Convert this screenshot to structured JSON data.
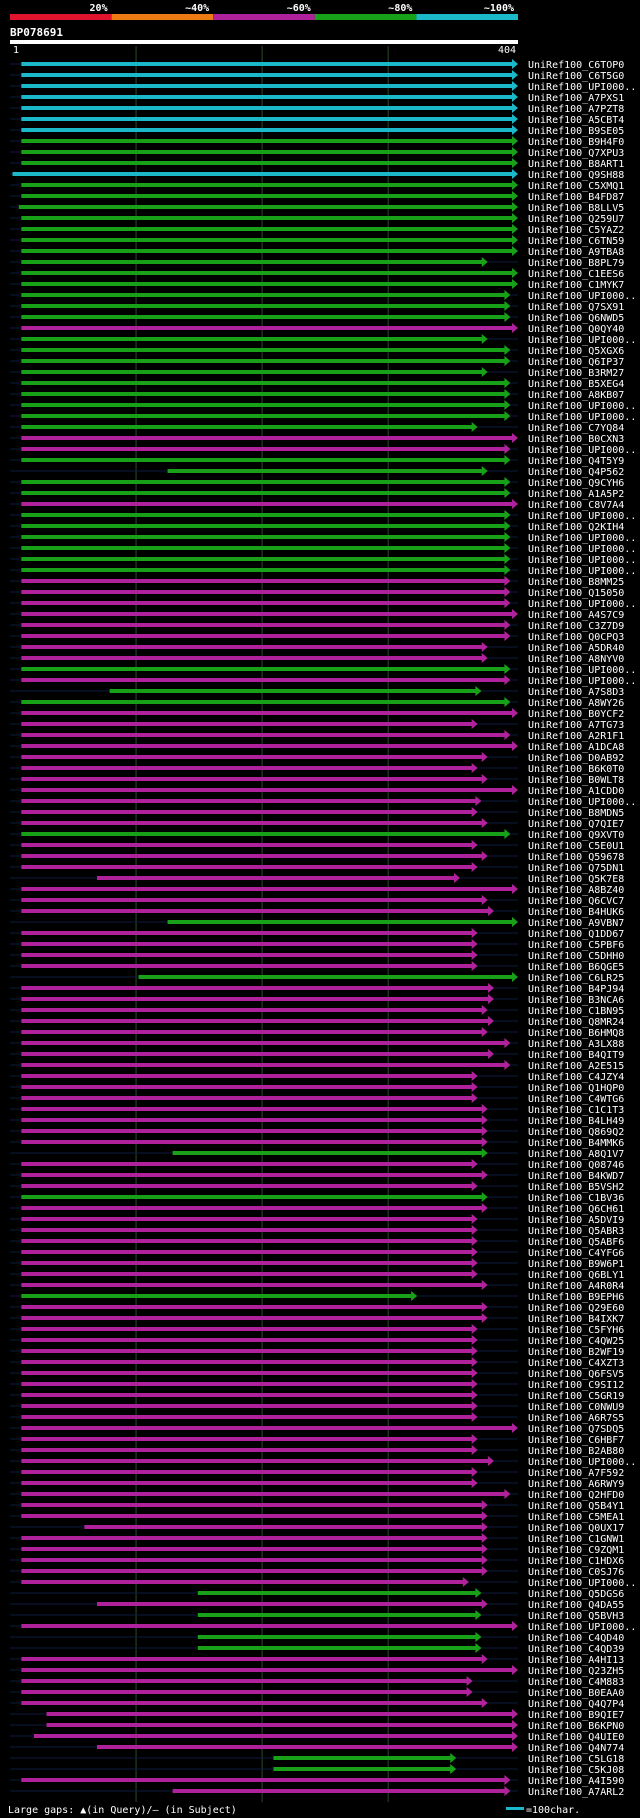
{
  "chart_data": {
    "type": "bar",
    "query_id": "BP078691",
    "query_length": 404,
    "axis": {
      "start_label": "1",
      "end_label": "404"
    },
    "identity_scale": [
      {
        "label": "20%",
        "color": "#e0142c"
      },
      {
        "label": "~40%",
        "color": "#ee7a14"
      },
      {
        "label": "~60%",
        "color": "#b0229b"
      },
      {
        "label": "~80%",
        "color": "#18a018"
      },
      {
        "label": "~100%",
        "color": "#1ab8c8"
      }
    ],
    "footer": {
      "gaps_text": "Large gaps: ▲(in Query)/– (in Subject)",
      "scale_text": "=100char."
    },
    "hits": [
      {
        "name": "UniRef100_C6TOP0",
        "start": 10,
        "end": 404,
        "id": "~100%"
      },
      {
        "name": "UniRef100_C6T5G0",
        "start": 10,
        "end": 404,
        "id": "~100%"
      },
      {
        "name": "UniRef100_UPI000..",
        "start": 10,
        "end": 404,
        "id": "~100%"
      },
      {
        "name": "UniRef100_A7PXS1",
        "start": 10,
        "end": 404,
        "id": "~100%"
      },
      {
        "name": "UniRef100_A7PZT8",
        "start": 10,
        "end": 404,
        "id": "~100%"
      },
      {
        "name": "UniRef100_A5CBT4",
        "start": 10,
        "end": 404,
        "id": "~100%"
      },
      {
        "name": "UniRef100_B9SE05",
        "start": 10,
        "end": 404,
        "id": "~100%"
      },
      {
        "name": "UniRef100_B9H4F0",
        "start": 10,
        "end": 404,
        "id": "~80%"
      },
      {
        "name": "UniRef100_Q7XPU3",
        "start": 10,
        "end": 404,
        "id": "~80%"
      },
      {
        "name": "UniRef100_B8ART1",
        "start": 10,
        "end": 404,
        "id": "~80%"
      },
      {
        "name": "UniRef100_Q9SH88",
        "start": 3,
        "end": 404,
        "id": "~100%"
      },
      {
        "name": "UniRef100_C5XMQ1",
        "start": 10,
        "end": 404,
        "id": "~80%"
      },
      {
        "name": "UniRef100_B4FD87",
        "start": 10,
        "end": 404,
        "id": "~80%"
      },
      {
        "name": "UniRef100_B8LLV5",
        "start": 8,
        "end": 404,
        "id": "~80%"
      },
      {
        "name": "UniRef100_Q259U7",
        "start": 10,
        "end": 404,
        "id": "~80%"
      },
      {
        "name": "UniRef100_C5YAZ2",
        "start": 10,
        "end": 404,
        "id": "~80%"
      },
      {
        "name": "UniRef100_C6TN59",
        "start": 10,
        "end": 404,
        "id": "~80%"
      },
      {
        "name": "UniRef100_A9TBA8",
        "start": 10,
        "end": 404,
        "id": "~80%"
      },
      {
        "name": "UniRef100_B8PL79",
        "start": 10,
        "end": 380,
        "id": "~80%"
      },
      {
        "name": "UniRef100_C1EES6",
        "start": 10,
        "end": 404,
        "id": "~80%"
      },
      {
        "name": "UniRef100_C1MYK7",
        "start": 10,
        "end": 404,
        "id": "~80%"
      },
      {
        "name": "UniRef100_UPI000..",
        "start": 10,
        "end": 398,
        "id": "~80%"
      },
      {
        "name": "UniRef100_Q7SX91",
        "start": 10,
        "end": 398,
        "id": "~80%"
      },
      {
        "name": "UniRef100_Q6NWD5",
        "start": 10,
        "end": 398,
        "id": "~80%"
      },
      {
        "name": "UniRef100_Q0QY40",
        "start": 10,
        "end": 404,
        "id": "~60%"
      },
      {
        "name": "UniRef100_UPI000..",
        "start": 10,
        "end": 380,
        "id": "~80%"
      },
      {
        "name": "UniRef100_Q5XGX6",
        "start": 10,
        "end": 398,
        "id": "~80%"
      },
      {
        "name": "UniRef100_Q6IP37",
        "start": 10,
        "end": 398,
        "id": "~80%"
      },
      {
        "name": "UniRef100_B3RM27",
        "start": 10,
        "end": 380,
        "id": "~80%"
      },
      {
        "name": "UniRef100_B5XEG4",
        "start": 10,
        "end": 398,
        "id": "~80%"
      },
      {
        "name": "UniRef100_A8KB07",
        "start": 10,
        "end": 398,
        "id": "~80%"
      },
      {
        "name": "UniRef100_UPI000..",
        "start": 10,
        "end": 398,
        "id": "~80%"
      },
      {
        "name": "UniRef100_UPI000..",
        "start": 10,
        "end": 398,
        "id": "~80%"
      },
      {
        "name": "UniRef100_C7YQ84",
        "start": 10,
        "end": 372,
        "id": "~80%"
      },
      {
        "name": "UniRef100_B0CXN3",
        "start": 10,
        "end": 404,
        "id": "~60%"
      },
      {
        "name": "UniRef100_UPI000..",
        "start": 10,
        "end": 398,
        "id": "~60%"
      },
      {
        "name": "UniRef100_Q4T5Y9",
        "start": 10,
        "end": 398,
        "id": "~80%"
      },
      {
        "name": "UniRef100_Q4P562",
        "start": 126,
        "end": 380,
        "id": "~80%"
      },
      {
        "name": "UniRef100_Q9CYH6",
        "start": 10,
        "end": 398,
        "id": "~80%"
      },
      {
        "name": "UniRef100_A1A5P2",
        "start": 10,
        "end": 398,
        "id": "~80%"
      },
      {
        "name": "UniRef100_C8V7A4",
        "start": 10,
        "end": 404,
        "id": "~60%"
      },
      {
        "name": "UniRef100_UPI000..",
        "start": 10,
        "end": 398,
        "id": "~80%"
      },
      {
        "name": "UniRef100_Q2KIH4",
        "start": 10,
        "end": 398,
        "id": "~80%"
      },
      {
        "name": "UniRef100_UPI000..",
        "start": 10,
        "end": 398,
        "id": "~80%"
      },
      {
        "name": "UniRef100_UPI000..",
        "start": 10,
        "end": 398,
        "id": "~80%"
      },
      {
        "name": "UniRef100_UPI000..",
        "start": 10,
        "end": 398,
        "id": "~80%"
      },
      {
        "name": "UniRef100_UPI000..",
        "start": 10,
        "end": 398,
        "id": "~80%"
      },
      {
        "name": "UniRef100_B8MM25",
        "start": 10,
        "end": 398,
        "id": "~60%"
      },
      {
        "name": "UniRef100_Q15050",
        "start": 10,
        "end": 398,
        "id": "~60%"
      },
      {
        "name": "UniRef100_UPI000..",
        "start": 10,
        "end": 398,
        "id": "~60%"
      },
      {
        "name": "UniRef100_A4S7C9",
        "start": 10,
        "end": 404,
        "id": "~60%"
      },
      {
        "name": "UniRef100_C3Z7D9",
        "start": 10,
        "end": 398,
        "id": "~60%"
      },
      {
        "name": "UniRef100_Q0CPQ3",
        "start": 10,
        "end": 398,
        "id": "~60%"
      },
      {
        "name": "UniRef100_A5DR40",
        "start": 10,
        "end": 380,
        "id": "~60%"
      },
      {
        "name": "UniRef100_A8NYV0",
        "start": 10,
        "end": 380,
        "id": "~60%"
      },
      {
        "name": "UniRef100_UPI000..",
        "start": 10,
        "end": 398,
        "id": "~80%"
      },
      {
        "name": "UniRef100_UPI000..",
        "start": 10,
        "end": 398,
        "id": "~60%"
      },
      {
        "name": "UniRef100_A7S8D3",
        "start": 80,
        "end": 375,
        "id": "~80%"
      },
      {
        "name": "UniRef100_A8WY26",
        "start": 10,
        "end": 398,
        "id": "~80%"
      },
      {
        "name": "UniRef100_B0YCF2",
        "start": 10,
        "end": 404,
        "id": "~60%"
      },
      {
        "name": "UniRef100_A7TG73",
        "start": 10,
        "end": 372,
        "id": "~60%"
      },
      {
        "name": "UniRef100_A2R1F1",
        "start": 10,
        "end": 398,
        "id": "~60%"
      },
      {
        "name": "UniRef100_A1DCA8",
        "start": 10,
        "end": 404,
        "id": "~60%"
      },
      {
        "name": "UniRef100_D0AB92",
        "start": 10,
        "end": 380,
        "id": "~60%"
      },
      {
        "name": "UniRef100_B6K0T0",
        "start": 10,
        "end": 372,
        "id": "~60%"
      },
      {
        "name": "UniRef100_B0WLT8",
        "start": 10,
        "end": 380,
        "id": "~60%"
      },
      {
        "name": "UniRef100_A1CDD0",
        "start": 10,
        "end": 404,
        "id": "~60%"
      },
      {
        "name": "UniRef100_UPI000..",
        "start": 10,
        "end": 375,
        "id": "~60%"
      },
      {
        "name": "UniRef100_B8MDN5",
        "start": 10,
        "end": 372,
        "id": "~60%"
      },
      {
        "name": "UniRef100_Q7QIE7",
        "start": 10,
        "end": 380,
        "id": "~60%"
      },
      {
        "name": "UniRef100_Q9XVT0",
        "start": 10,
        "end": 398,
        "id": "~80%"
      },
      {
        "name": "UniRef100_C5E0U1",
        "start": 10,
        "end": 372,
        "id": "~60%"
      },
      {
        "name": "UniRef100_Q59678",
        "start": 10,
        "end": 380,
        "id": "~60%"
      },
      {
        "name": "UniRef100_Q75DN1",
        "start": 10,
        "end": 372,
        "id": "~60%"
      },
      {
        "name": "UniRef100_Q5K7E8",
        "start": 70,
        "end": 358,
        "id": "~60%"
      },
      {
        "name": "UniRef100_A8BZ40",
        "start": 10,
        "end": 404,
        "id": "~60%"
      },
      {
        "name": "UniRef100_Q6CVC7",
        "start": 10,
        "end": 380,
        "id": "~60%"
      },
      {
        "name": "UniRef100_B4HUK6",
        "start": 10,
        "end": 385,
        "id": "~60%"
      },
      {
        "name": "UniRef100_A9VBN7",
        "start": 126,
        "end": 404,
        "id": "~80%"
      },
      {
        "name": "UniRef100_Q1DD67",
        "start": 10,
        "end": 372,
        "id": "~60%"
      },
      {
        "name": "UniRef100_C5PBF6",
        "start": 10,
        "end": 372,
        "id": "~60%"
      },
      {
        "name": "UniRef100_C5DHH0",
        "start": 10,
        "end": 372,
        "id": "~60%"
      },
      {
        "name": "UniRef100_B6QGE5",
        "start": 10,
        "end": 372,
        "id": "~60%"
      },
      {
        "name": "UniRef100_C6LR25",
        "start": 103,
        "end": 404,
        "id": "~80%"
      },
      {
        "name": "UniRef100_B4PJ94",
        "start": 10,
        "end": 385,
        "id": "~60%"
      },
      {
        "name": "UniRef100_B3NCA6",
        "start": 10,
        "end": 385,
        "id": "~60%"
      },
      {
        "name": "UniRef100_C1BN95",
        "start": 10,
        "end": 380,
        "id": "~60%"
      },
      {
        "name": "UniRef100_Q8MR24",
        "start": 10,
        "end": 385,
        "id": "~60%"
      },
      {
        "name": "UniRef100_B6HMQ8",
        "start": 10,
        "end": 380,
        "id": "~60%"
      },
      {
        "name": "UniRef100_A3LX88",
        "start": 10,
        "end": 398,
        "id": "~60%"
      },
      {
        "name": "UniRef100_B4QIT9",
        "start": 10,
        "end": 385,
        "id": "~60%"
      },
      {
        "name": "UniRef100_A2E515",
        "start": 10,
        "end": 398,
        "id": "~60%"
      },
      {
        "name": "UniRef100_C4JZY4",
        "start": 10,
        "end": 372,
        "id": "~60%"
      },
      {
        "name": "UniRef100_Q1HQP0",
        "start": 10,
        "end": 372,
        "id": "~60%"
      },
      {
        "name": "UniRef100_C4WTG6",
        "start": 10,
        "end": 372,
        "id": "~60%"
      },
      {
        "name": "UniRef100_C1C1T3",
        "start": 10,
        "end": 380,
        "id": "~60%"
      },
      {
        "name": "UniRef100_B4LH49",
        "start": 10,
        "end": 380,
        "id": "~60%"
      },
      {
        "name": "UniRef100_Q869Q2",
        "start": 10,
        "end": 380,
        "id": "~60%"
      },
      {
        "name": "UniRef100_B4MMK6",
        "start": 10,
        "end": 380,
        "id": "~60%"
      },
      {
        "name": "UniRef100_A8Q1V7",
        "start": 130,
        "end": 380,
        "id": "~80%"
      },
      {
        "name": "UniRef100_Q08746",
        "start": 10,
        "end": 372,
        "id": "~60%"
      },
      {
        "name": "UniRef100_B4KWD7",
        "start": 10,
        "end": 380,
        "id": "~60%"
      },
      {
        "name": "UniRef100_B5VSH2",
        "start": 10,
        "end": 372,
        "id": "~60%"
      },
      {
        "name": "UniRef100_C1BV36",
        "start": 10,
        "end": 380,
        "id": "~80%"
      },
      {
        "name": "UniRef100_Q6CH61",
        "start": 10,
        "end": 380,
        "id": "~60%"
      },
      {
        "name": "UniRef100_A5DVI9",
        "start": 10,
        "end": 372,
        "id": "~60%"
      },
      {
        "name": "UniRef100_Q5ABR3",
        "start": 10,
        "end": 372,
        "id": "~60%"
      },
      {
        "name": "UniRef100_Q5ABF6",
        "start": 10,
        "end": 372,
        "id": "~60%"
      },
      {
        "name": "UniRef100_C4YFG6",
        "start": 10,
        "end": 372,
        "id": "~60%"
      },
      {
        "name": "UniRef100_B9W6P1",
        "start": 10,
        "end": 372,
        "id": "~60%"
      },
      {
        "name": "UniRef100_Q6BLY1",
        "start": 10,
        "end": 372,
        "id": "~60%"
      },
      {
        "name": "UniRef100_A4R0R4",
        "start": 10,
        "end": 380,
        "id": "~60%"
      },
      {
        "name": "UniRef100_B9EPH6",
        "start": 10,
        "end": 324,
        "id": "~80%"
      },
      {
        "name": "UniRef100_Q29E60",
        "start": 10,
        "end": 380,
        "id": "~60%"
      },
      {
        "name": "UniRef100_B4IXK7",
        "start": 10,
        "end": 380,
        "id": "~60%"
      },
      {
        "name": "UniRef100_C5FYH6",
        "start": 10,
        "end": 372,
        "id": "~60%"
      },
      {
        "name": "UniRef100_C4QW25",
        "start": 10,
        "end": 372,
        "id": "~60%"
      },
      {
        "name": "UniRef100_B2WF19",
        "start": 10,
        "end": 372,
        "id": "~60%"
      },
      {
        "name": "UniRef100_C4XZT3",
        "start": 10,
        "end": 372,
        "id": "~60%"
      },
      {
        "name": "UniRef100_Q6FSV5",
        "start": 10,
        "end": 372,
        "id": "~60%"
      },
      {
        "name": "UniRef100_C9SI12",
        "start": 10,
        "end": 372,
        "id": "~60%"
      },
      {
        "name": "UniRef100_C5GR19",
        "start": 10,
        "end": 372,
        "id": "~60%"
      },
      {
        "name": "UniRef100_C0NWU9",
        "start": 10,
        "end": 372,
        "id": "~60%"
      },
      {
        "name": "UniRef100_A6R7S5",
        "start": 10,
        "end": 372,
        "id": "~60%"
      },
      {
        "name": "UniRef100_Q7SDQ5",
        "start": 10,
        "end": 404,
        "id": "~60%"
      },
      {
        "name": "UniRef100_C6HBF7",
        "start": 10,
        "end": 372,
        "id": "~60%"
      },
      {
        "name": "UniRef100_B2AB80",
        "start": 10,
        "end": 372,
        "id": "~60%"
      },
      {
        "name": "UniRef100_UPI000..",
        "start": 10,
        "end": 385,
        "id": "~60%"
      },
      {
        "name": "UniRef100_A7F592",
        "start": 10,
        "end": 372,
        "id": "~60%"
      },
      {
        "name": "UniRef100_A6RWY9",
        "start": 10,
        "end": 372,
        "id": "~60%"
      },
      {
        "name": "UniRef100_Q2HFD0",
        "start": 10,
        "end": 398,
        "id": "~60%"
      },
      {
        "name": "UniRef100_Q5B4Y1",
        "start": 10,
        "end": 380,
        "id": "~60%"
      },
      {
        "name": "UniRef100_C5MEA1",
        "start": 10,
        "end": 380,
        "id": "~60%"
      },
      {
        "name": "UniRef100_Q0UX17",
        "start": 60,
        "end": 380,
        "id": "~60%"
      },
      {
        "name": "UniRef100_C1GNW1",
        "start": 10,
        "end": 380,
        "id": "~60%"
      },
      {
        "name": "UniRef100_C9ZQM1",
        "start": 10,
        "end": 380,
        "id": "~60%"
      },
      {
        "name": "UniRef100_C1HDX6",
        "start": 10,
        "end": 380,
        "id": "~60%"
      },
      {
        "name": "UniRef100_C0SJ76",
        "start": 10,
        "end": 380,
        "id": "~60%"
      },
      {
        "name": "UniRef100_UPI000..",
        "start": 10,
        "end": 365,
        "id": "~60%"
      },
      {
        "name": "UniRef100_Q5DGS6",
        "start": 150,
        "end": 375,
        "id": "~80%"
      },
      {
        "name": "UniRef100_Q4DA55",
        "start": 70,
        "end": 380,
        "id": "~60%"
      },
      {
        "name": "UniRef100_Q5BVH3",
        "start": 150,
        "end": 375,
        "id": "~80%"
      },
      {
        "name": "UniRef100_UPI000..",
        "start": 10,
        "end": 404,
        "id": "~60%"
      },
      {
        "name": "UniRef100_C4QD40",
        "start": 150,
        "end": 375,
        "id": "~80%"
      },
      {
        "name": "UniRef100_C4QD39",
        "start": 150,
        "end": 375,
        "id": "~80%"
      },
      {
        "name": "UniRef100_A4HI13",
        "start": 10,
        "end": 380,
        "id": "~60%"
      },
      {
        "name": "UniRef100_Q23ZH5",
        "start": 10,
        "end": 404,
        "id": "~60%"
      },
      {
        "name": "UniRef100_C4M883",
        "start": 10,
        "end": 368,
        "id": "~60%"
      },
      {
        "name": "UniRef100_B0EAA0",
        "start": 10,
        "end": 368,
        "id": "~60%"
      },
      {
        "name": "UniRef100_Q4Q7P4",
        "start": 10,
        "end": 380,
        "id": "~60%"
      },
      {
        "name": "UniRef100_B9QIE7",
        "start": 30,
        "end": 404,
        "id": "~60%"
      },
      {
        "name": "UniRef100_B6KPN0",
        "start": 30,
        "end": 404,
        "id": "~60%"
      },
      {
        "name": "UniRef100_Q4UIE0",
        "start": 20,
        "end": 404,
        "id": "~60%"
      },
      {
        "name": "UniRef100_Q4N774",
        "start": 70,
        "end": 404,
        "id": "~60%"
      },
      {
        "name": "UniRef100_C5LG18",
        "start": 210,
        "end": 355,
        "id": "~80%"
      },
      {
        "name": "UniRef100_C5KJ08",
        "start": 210,
        "end": 355,
        "id": "~80%"
      },
      {
        "name": "UniRef100_A4I590",
        "start": 10,
        "end": 398,
        "id": "~60%"
      },
      {
        "name": "UniRef100_A7ARL2",
        "start": 130,
        "end": 398,
        "id": "~60%"
      }
    ]
  }
}
